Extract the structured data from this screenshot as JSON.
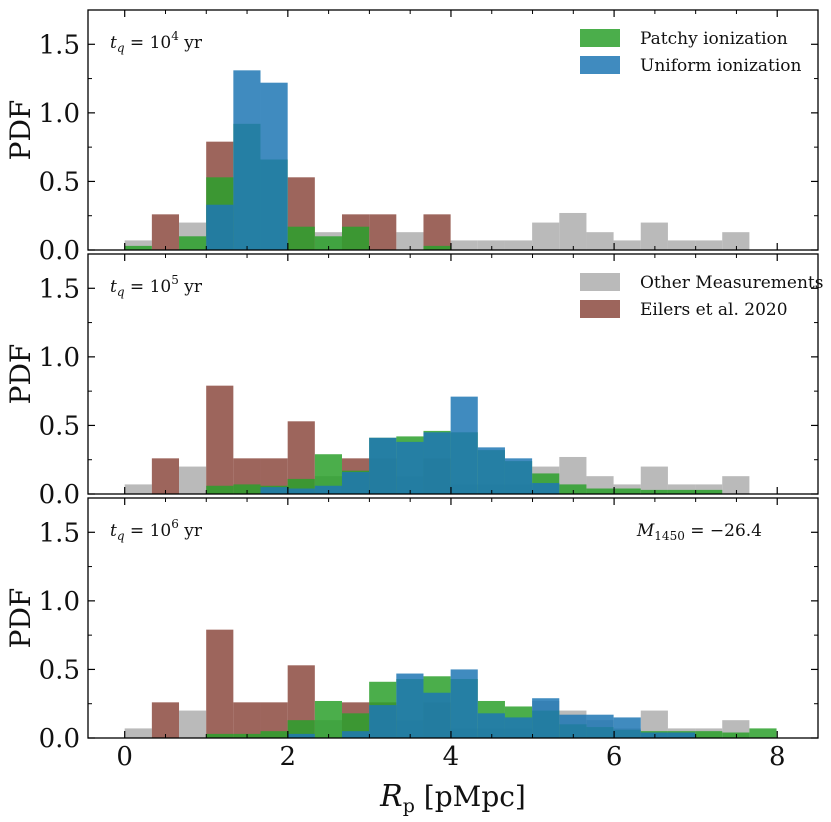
{
  "colors": {
    "other": "#a9a9a9",
    "eilers": "#8c4a3f",
    "patchy": "#2ca02c",
    "uniform": "#1f77b4"
  },
  "chart_data": {
    "type": "histogram",
    "title": "",
    "xlabel": "R_p [pMpc]",
    "xlabel_display": {
      "symbol": "R",
      "subscript": "p",
      "unit": " [pMpc]"
    },
    "ylabel": "PDF",
    "xlim": [
      -0.45,
      8.5
    ],
    "ylim": [
      0,
      1.75
    ],
    "xticks": [
      0,
      2,
      4,
      6,
      8
    ],
    "yticks": [
      "0.0",
      "0.5",
      "1.0",
      "1.5"
    ],
    "bin_width": 0.333,
    "bin_start": 0.0,
    "legend": [
      {
        "key": "patchy",
        "label": "Patchy ionization",
        "panel": 0
      },
      {
        "key": "uniform",
        "label": "Uniform ionization",
        "panel": 0
      },
      {
        "key": "other",
        "label": "Other Measurements",
        "panel": 1
      },
      {
        "key": "eilers",
        "label": "Eilers et al. 2020",
        "panel": 1
      }
    ],
    "panels": [
      {
        "annotation": {
          "prefix": "t",
          "sub": "q",
          "mid": " = 10",
          "sup": "4",
          "suffix": " yr"
        },
        "corner_label": "",
        "series": [
          {
            "key": "other",
            "name": "Other Measurements",
            "values": [
              0.07,
              0.0,
              0.2,
              0.0,
              0.0,
              0.0,
              0.0,
              0.13,
              0.0,
              0.0,
              0.13,
              0.0,
              0.07,
              0.07,
              0.07,
              0.2,
              0.27,
              0.13,
              0.07,
              0.2,
              0.07,
              0.07,
              0.13,
              0.0
            ]
          },
          {
            "key": "eilers",
            "name": "Eilers et al. 2020",
            "values": [
              0.0,
              0.26,
              0.0,
              0.79,
              0.0,
              0.0,
              0.53,
              0.0,
              0.26,
              0.26,
              0.0,
              0.26,
              0.0,
              0.0,
              0.0,
              0.0,
              0.0,
              0.0,
              0.0,
              0.0,
              0.0,
              0.0,
              0.0,
              0.0
            ]
          },
          {
            "key": "patchy",
            "name": "Patchy ionization",
            "values": [
              0.03,
              0.0,
              0.1,
              0.53,
              0.92,
              0.66,
              0.17,
              0.1,
              0.17,
              0.0,
              0.0,
              0.03,
              0.0,
              0.0,
              0.0,
              0.0,
              0.0,
              0.0,
              0.0,
              0.0,
              0.0,
              0.0,
              0.0,
              0.0
            ]
          },
          {
            "key": "uniform",
            "name": "Uniform ionization",
            "values": [
              0.0,
              0.0,
              0.0,
              0.33,
              1.31,
              1.22,
              0.0,
              0.0,
              0.0,
              0.0,
              0.0,
              0.0,
              0.0,
              0.0,
              0.0,
              0.0,
              0.0,
              0.0,
              0.0,
              0.0,
              0.0,
              0.0,
              0.0,
              0.0
            ]
          }
        ]
      },
      {
        "annotation": {
          "prefix": "t",
          "sub": "q",
          "mid": " = 10",
          "sup": "5",
          "suffix": " yr"
        },
        "corner_label": "",
        "series": [
          {
            "key": "other",
            "name": "Other Measurements",
            "values": [
              0.07,
              0.0,
              0.2,
              0.0,
              0.0,
              0.0,
              0.0,
              0.13,
              0.0,
              0.0,
              0.13,
              0.0,
              0.07,
              0.07,
              0.07,
              0.2,
              0.27,
              0.13,
              0.07,
              0.2,
              0.07,
              0.07,
              0.13,
              0.0
            ]
          },
          {
            "key": "eilers",
            "name": "Eilers et al. 2020",
            "values": [
              0.0,
              0.26,
              0.0,
              0.79,
              0.26,
              0.26,
              0.53,
              0.0,
              0.26,
              0.26,
              0.0,
              0.26,
              0.0,
              0.0,
              0.0,
              0.0,
              0.0,
              0.0,
              0.0,
              0.0,
              0.0,
              0.0,
              0.0,
              0.0
            ]
          },
          {
            "key": "patchy",
            "name": "Patchy ionization",
            "values": [
              0.0,
              0.0,
              0.0,
              0.06,
              0.07,
              0.06,
              0.11,
              0.29,
              0.17,
              0.41,
              0.42,
              0.46,
              0.45,
              0.32,
              0.24,
              0.15,
              0.07,
              0.04,
              0.04,
              0.03,
              0.03,
              0.03,
              0.0,
              0.0
            ]
          },
          {
            "key": "uniform",
            "name": "Uniform ionization",
            "values": [
              0.0,
              0.0,
              0.0,
              0.0,
              0.0,
              0.05,
              0.04,
              0.06,
              0.16,
              0.41,
              0.38,
              0.45,
              0.71,
              0.34,
              0.26,
              0.08,
              0.0,
              0.0,
              0.0,
              0.0,
              0.0,
              0.0,
              0.0,
              0.0
            ]
          }
        ]
      },
      {
        "annotation": {
          "prefix": "t",
          "sub": "q",
          "mid": " = 10",
          "sup": "6",
          "suffix": " yr"
        },
        "corner_label": {
          "prefix": "M",
          "sub": "1450",
          "suffix": " = −26.4"
        },
        "series": [
          {
            "key": "other",
            "name": "Other Measurements",
            "values": [
              0.07,
              0.0,
              0.2,
              0.0,
              0.0,
              0.0,
              0.0,
              0.13,
              0.0,
              0.0,
              0.13,
              0.0,
              0.07,
              0.07,
              0.07,
              0.27,
              0.2,
              0.13,
              0.07,
              0.2,
              0.07,
              0.07,
              0.13,
              0.0
            ]
          },
          {
            "key": "eilers",
            "name": "Eilers et al. 2020",
            "values": [
              0.0,
              0.26,
              0.0,
              0.79,
              0.26,
              0.26,
              0.53,
              0.0,
              0.26,
              0.26,
              0.0,
              0.26,
              0.0,
              0.0,
              0.0,
              0.0,
              0.0,
              0.0,
              0.0,
              0.0,
              0.0,
              0.0,
              0.0,
              0.0
            ]
          },
          {
            "key": "patchy",
            "name": "Patchy ionization",
            "values": [
              0.0,
              0.0,
              0.0,
              0.03,
              0.03,
              0.05,
              0.13,
              0.27,
              0.18,
              0.41,
              0.43,
              0.45,
              0.43,
              0.27,
              0.23,
              0.2,
              0.1,
              0.08,
              0.06,
              0.05,
              0.05,
              0.05,
              0.04,
              0.07
            ]
          },
          {
            "key": "uniform",
            "name": "Uniform ionization",
            "values": [
              0.0,
              0.0,
              0.0,
              0.0,
              0.0,
              0.0,
              0.03,
              0.0,
              0.05,
              0.24,
              0.47,
              0.33,
              0.5,
              0.18,
              0.15,
              0.29,
              0.17,
              0.17,
              0.15,
              0.04,
              0.04,
              0.0,
              0.0,
              0.0
            ]
          }
        ]
      }
    ]
  }
}
